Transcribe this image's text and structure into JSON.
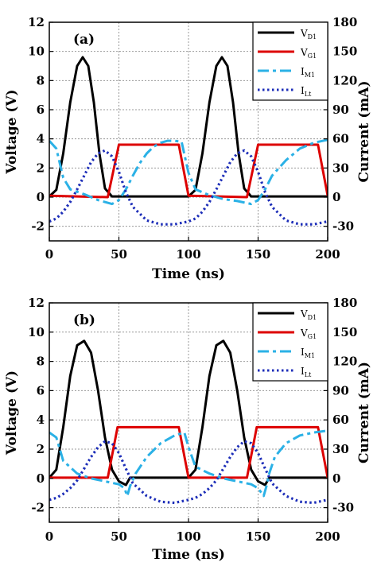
{
  "chart_data": [
    {
      "type": "line",
      "panel_label": "(a)",
      "xlabel": "Time (ns)",
      "ylabel": "Voltage (V)",
      "y2label": "Current (mA)",
      "xlim": [
        0,
        200
      ],
      "ylim": [
        -3,
        12
      ],
      "y2lim": [
        -45,
        180
      ],
      "xticks": [
        0,
        50,
        100,
        150,
        200
      ],
      "yticks": [
        -2,
        0,
        2,
        4,
        6,
        8,
        10,
        12
      ],
      "y2ticks": [
        -30,
        0,
        30,
        60,
        90,
        120,
        150,
        180
      ],
      "grid": true,
      "legend_position": "top-right",
      "series": [
        {
          "name": "V",
          "sub": "D1",
          "axis": "left",
          "color": "#000000",
          "dash": "solid",
          "x": [
            0,
            5,
            10,
            15,
            20,
            24,
            28,
            32,
            36,
            40,
            45,
            50,
            60,
            70,
            80,
            90,
            100,
            105,
            110,
            115,
            120,
            124,
            128,
            132,
            136,
            140,
            145,
            150,
            160,
            170,
            180,
            190,
            200
          ],
          "y": [
            0.05,
            0.5,
            3.0,
            6.5,
            9.0,
            9.6,
            9.0,
            6.5,
            3.0,
            0.6,
            0.05,
            0.05,
            0.05,
            0.05,
            0.05,
            0.05,
            0.05,
            0.5,
            3.0,
            6.5,
            9.0,
            9.6,
            9.0,
            6.5,
            3.0,
            0.6,
            0.05,
            0.05,
            0.05,
            0.05,
            0.05,
            0.05,
            0.05
          ]
        },
        {
          "name": "V",
          "sub": "G1",
          "axis": "left",
          "color": "#dd0000",
          "dash": "solid",
          "x": [
            0,
            42,
            50,
            93,
            100,
            142,
            150,
            193,
            200
          ],
          "y": [
            0.1,
            0.0,
            3.6,
            3.6,
            0.1,
            0.0,
            3.6,
            3.6,
            0.1
          ]
        },
        {
          "name": "I",
          "sub": "M1",
          "axis": "right",
          "color": "#2bb1e6",
          "dash": "dashdot",
          "x": [
            0,
            5,
            10,
            15,
            25,
            35,
            45,
            50,
            55,
            60,
            65,
            70,
            75,
            80,
            85,
            90,
            95,
            100,
            105,
            115,
            125,
            135,
            145,
            150,
            155,
            160,
            170,
            180,
            190,
            200
          ],
          "y": [
            58,
            50,
            20,
            8,
            3,
            -3,
            -7,
            -3,
            8,
            22,
            35,
            45,
            52,
            56,
            58,
            58,
            57,
            25,
            8,
            2,
            -2,
            -4,
            -7,
            -3,
            8,
            22,
            38,
            50,
            56,
            59
          ]
        },
        {
          "name": "I",
          "sub": "Lt",
          "axis": "right",
          "color": "#1c2db8",
          "dash": "dot",
          "x": [
            0,
            5,
            10,
            15,
            20,
            25,
            30,
            35,
            40,
            45,
            50,
            55,
            60,
            70,
            80,
            90,
            100,
            105,
            110,
            115,
            120,
            125,
            130,
            135,
            140,
            145,
            150,
            155,
            160,
            170,
            180,
            190,
            200
          ],
          "y": [
            -25,
            -22,
            -15,
            -5,
            8,
            22,
            36,
            45,
            48,
            42,
            26,
            5,
            -10,
            -24,
            -28,
            -28,
            -25,
            -22,
            -15,
            -5,
            8,
            22,
            36,
            45,
            48,
            42,
            26,
            5,
            -10,
            -24,
            -28,
            -28,
            -25
          ]
        }
      ]
    },
    {
      "type": "line",
      "panel_label": "(b)",
      "xlabel": "Time (ns)",
      "ylabel": "Voltage (V)",
      "y2label": "Current (mA)",
      "xlim": [
        0,
        200
      ],
      "ylim": [
        -3,
        12
      ],
      "y2lim": [
        -45,
        180
      ],
      "xticks": [
        0,
        50,
        100,
        150,
        200
      ],
      "yticks": [
        -2,
        0,
        2,
        4,
        6,
        8,
        10,
        12
      ],
      "y2ticks": [
        -30,
        0,
        30,
        60,
        90,
        120,
        150,
        180
      ],
      "grid": true,
      "legend_position": "top-right",
      "series": [
        {
          "name": "V",
          "sub": "D1",
          "axis": "left",
          "color": "#000000",
          "dash": "solid",
          "x": [
            0,
            5,
            10,
            15,
            20,
            25,
            30,
            35,
            40,
            45,
            50,
            55,
            58,
            65,
            80,
            100,
            105,
            110,
            115,
            120,
            125,
            130,
            135,
            140,
            145,
            150,
            155,
            158,
            165,
            180,
            200
          ],
          "y": [
            0.05,
            0.6,
            3.5,
            7.0,
            9.1,
            9.4,
            8.6,
            6.0,
            2.8,
            0.6,
            -0.2,
            -0.45,
            0.05,
            0.05,
            0.05,
            0.05,
            0.6,
            3.5,
            7.0,
            9.1,
            9.4,
            8.6,
            6.0,
            2.8,
            0.6,
            -0.2,
            -0.45,
            0.05,
            0.05,
            0.05,
            0.05
          ]
        },
        {
          "name": "V",
          "sub": "G1",
          "axis": "left",
          "color": "#dd0000",
          "dash": "solid",
          "x": [
            0,
            42,
            49,
            93,
            100,
            142,
            149,
            193,
            200
          ],
          "y": [
            0.05,
            0.05,
            3.5,
            3.5,
            0.05,
            0.05,
            3.5,
            3.5,
            0.05
          ]
        },
        {
          "name": "I",
          "sub": "M1",
          "axis": "right",
          "color": "#2bb1e6",
          "dash": "dashdot",
          "x": [
            0,
            5,
            10,
            20,
            30,
            40,
            50,
            54,
            56,
            58,
            62,
            70,
            80,
            90,
            97,
            100,
            105,
            115,
            125,
            135,
            145,
            150,
            154,
            156,
            158,
            162,
            170,
            180,
            190,
            200
          ],
          "y": [
            47,
            42,
            18,
            5,
            0,
            -3,
            -6,
            -10,
            -18,
            -8,
            5,
            22,
            36,
            44,
            47,
            32,
            12,
            5,
            0,
            -3,
            -6,
            -10,
            -18,
            -8,
            5,
            22,
            36,
            44,
            47,
            49
          ]
        },
        {
          "name": "I",
          "sub": "Lt",
          "axis": "right",
          "color": "#1c2db8",
          "dash": "dot",
          "x": [
            0,
            5,
            10,
            15,
            20,
            25,
            30,
            35,
            40,
            45,
            50,
            55,
            60,
            70,
            80,
            90,
            100,
            105,
            110,
            115,
            120,
            125,
            130,
            135,
            140,
            145,
            150,
            155,
            160,
            170,
            180,
            190,
            200
          ],
          "y": [
            -22,
            -20,
            -16,
            -10,
            -2,
            10,
            22,
            32,
            38,
            36,
            26,
            10,
            -5,
            -18,
            -24,
            -25,
            -22,
            -20,
            -16,
            -10,
            -2,
            10,
            22,
            32,
            38,
            36,
            26,
            10,
            -5,
            -18,
            -24,
            -25,
            -22
          ]
        }
      ]
    }
  ]
}
